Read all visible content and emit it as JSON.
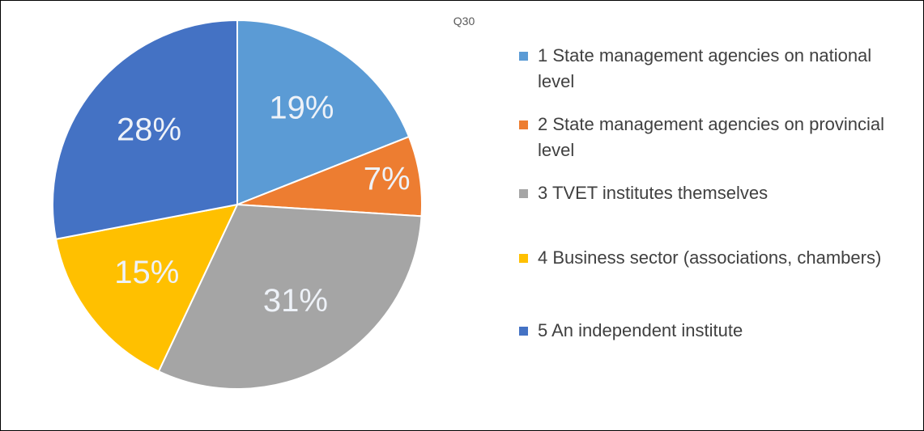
{
  "chart_data": {
    "type": "pie",
    "title": "Q30",
    "categories": [
      "1 State management agencies on national level",
      "2 State management agencies on provincial level",
      "3 TVET institutes themselves",
      "4 Business sector (associations, chambers)",
      "5 An independent institute"
    ],
    "values": [
      19,
      7,
      31,
      15,
      28
    ],
    "value_labels": [
      "19%",
      "7%",
      "31%",
      "15%",
      "28%"
    ],
    "colors": [
      "#5b9bd5",
      "#ed7d31",
      "#a5a5a5",
      "#ffc000",
      "#4472c4"
    ],
    "legend": "right"
  }
}
